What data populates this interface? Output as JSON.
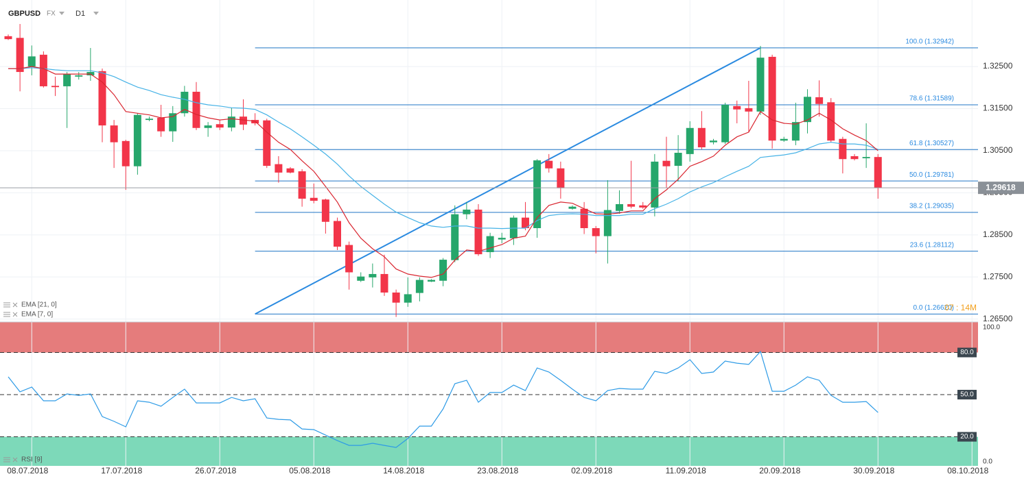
{
  "header": {
    "symbol": "GBPUSD",
    "market": "FX",
    "timeframe": "D1",
    "timer": "07 : 14M"
  },
  "chart_data": [
    {
      "type": "candlestick",
      "up_color": "#26a66b",
      "down_color": "#f23549",
      "open": [
        1.3322,
        1.3318,
        1.325,
        1.3278,
        1.3204,
        1.3203,
        1.3226,
        1.3229,
        1.3239,
        1.311,
        1.3073,
        1.3013,
        1.3123,
        1.3128,
        1.3096,
        1.3139,
        1.319,
        1.3104,
        1.3113,
        1.3105,
        1.3131,
        1.3123,
        1.3122,
        1.3018,
        1.3008,
        1.3001,
        1.2938,
        1.2934,
        1.2883,
        1.2826,
        1.2741,
        1.2749,
        1.2757,
        1.2713,
        1.2689,
        1.2712,
        1.2739,
        1.2741,
        1.279,
        1.2899,
        1.291,
        1.2809,
        1.2839,
        1.2842,
        1.2891,
        1.2866,
        1.3026,
        1.3008,
        1.2912,
        1.2912,
        1.2866,
        1.2847,
        1.2907,
        1.2923,
        1.292,
        1.2915,
        1.3026,
        1.3014,
        1.3042,
        1.3104,
        1.307,
        1.307,
        1.3156,
        1.3151,
        1.3143,
        1.3273,
        1.3074,
        1.3074,
        1.3118,
        1.3177,
        1.3165,
        1.3078,
        1.3037,
        1.3032,
        1.3035
      ],
      "high": [
        1.3326,
        1.3351,
        1.33,
        1.3286,
        1.3226,
        1.3237,
        1.3237,
        1.3294,
        1.3245,
        1.3123,
        1.3076,
        1.3139,
        1.3131,
        1.3159,
        1.3156,
        1.3204,
        1.3213,
        1.3118,
        1.3123,
        1.3152,
        1.3172,
        1.3139,
        1.3126,
        1.3037,
        1.3011,
        1.3006,
        1.2972,
        1.2936,
        1.2891,
        1.2834,
        1.2761,
        1.2782,
        1.2803,
        1.272,
        1.2749,
        1.2749,
        1.2745,
        1.2795,
        1.292,
        1.2928,
        1.2923,
        1.2855,
        1.2855,
        1.2896,
        1.2928,
        1.303,
        1.3042,
        1.3024,
        1.292,
        1.2928,
        1.2871,
        1.298,
        1.2956,
        1.3026,
        1.2928,
        1.3042,
        1.3083,
        1.3087,
        1.312,
        1.3144,
        1.3078,
        1.3164,
        1.3169,
        1.3216,
        1.3299,
        1.3278,
        1.3083,
        1.3164,
        1.3196,
        1.3217,
        1.3175,
        1.3083,
        1.3042,
        1.3115,
        1.3042
      ],
      "low": [
        1.3313,
        1.3191,
        1.3229,
        1.32,
        1.318,
        1.3104,
        1.3219,
        1.3216,
        1.307,
        1.3009,
        1.2957,
        1.2993,
        1.312,
        1.3083,
        1.3071,
        1.3131,
        1.3099,
        1.3083,
        1.3099,
        1.3096,
        1.3099,
        1.311,
        1.3009,
        1.2974,
        1.2996,
        1.2917,
        1.2925,
        1.2853,
        1.2814,
        1.272,
        1.2738,
        1.2725,
        1.2705,
        1.2655,
        1.2679,
        1.2692,
        1.2738,
        1.2728,
        1.2785,
        1.2887,
        1.28,
        1.2795,
        1.283,
        1.2826,
        1.2861,
        1.2843,
        1.2998,
        1.2936,
        1.291,
        1.2852,
        1.2806,
        1.2782,
        1.29,
        1.2913,
        1.2912,
        1.2894,
        1.2961,
        1.2977,
        1.3024,
        1.3053,
        1.3065,
        1.3066,
        1.3115,
        1.3094,
        1.3135,
        1.3055,
        1.3071,
        1.3063,
        1.3091,
        1.3131,
        1.307,
        1.2996,
        1.3027,
        1.3009,
        1.2936
      ],
      "close": [
        1.3315,
        1.3237,
        1.3274,
        1.3203,
        1.3201,
        1.3232,
        1.3229,
        1.3237,
        1.311,
        1.307,
        1.3013,
        1.3135,
        1.3126,
        1.3096,
        1.3139,
        1.319,
        1.3104,
        1.311,
        1.3105,
        1.3131,
        1.3112,
        1.3115,
        1.3014,
        1.2998,
        1.2998,
        1.2936,
        1.2931,
        1.2881,
        1.2822,
        1.2761,
        1.2751,
        1.2757,
        1.2713,
        1.2689,
        1.2709,
        1.2743,
        1.2743,
        1.2791,
        1.2899,
        1.291,
        1.2804,
        1.2847,
        1.2843,
        1.2891,
        1.2866,
        1.3027,
        1.3008,
        1.2961,
        1.2917,
        1.2866,
        1.2847,
        1.2909,
        1.2923,
        1.2917,
        1.2915,
        1.3024,
        1.3013,
        1.3045,
        1.3104,
        1.3058,
        1.3074,
        1.3159,
        1.3148,
        1.3143,
        1.3271,
        1.3074,
        1.3078,
        1.3118,
        1.3178,
        1.3161,
        1.3074,
        1.303,
        1.303,
        1.3035,
        1.2962
      ],
      "series": [
        {
          "name": "EMA [21, 0]",
          "color": "#45b2e6",
          "values": [
            1.3245,
            1.3245,
            1.3247,
            1.3245,
            1.3242,
            1.324,
            1.324,
            1.324,
            1.3235,
            1.3226,
            1.3213,
            1.3201,
            1.3193,
            1.3183,
            1.3177,
            1.3172,
            1.3164,
            1.3159,
            1.3156,
            1.3152,
            1.3151,
            1.3148,
            1.3135,
            1.3118,
            1.3102,
            1.3083,
            1.3063,
            1.3042,
            1.3018,
            1.299,
            1.2965,
            1.2944,
            1.2923,
            1.2904,
            1.2891,
            1.2879,
            1.2871,
            1.2868,
            1.2871,
            1.2871,
            1.2866,
            1.2866,
            1.2865,
            1.2866,
            1.2866,
            1.2884,
            1.2896,
            1.2899,
            1.29,
            1.2899,
            1.2896,
            1.2896,
            1.2896,
            1.2899,
            1.2899,
            1.2912,
            1.2923,
            1.2936,
            1.2952,
            1.2964,
            1.2974,
            1.2988,
            1.3001,
            1.3013,
            1.3034,
            1.3037,
            1.304,
            1.3045,
            1.3055,
            1.3066,
            1.307,
            1.3066,
            1.3066,
            1.3063,
            1.3053
          ]
        },
        {
          "name": "EMA [7, 0]",
          "color": "#d9252f",
          "values": [
            1.3245,
            1.3245,
            1.325,
            1.3245,
            1.3232,
            1.3232,
            1.3232,
            1.3232,
            1.3213,
            1.3183,
            1.3143,
            1.3139,
            1.3135,
            1.3128,
            1.3131,
            1.3148,
            1.3136,
            1.3128,
            1.3123,
            1.3126,
            1.3123,
            1.312,
            1.3094,
            1.307,
            1.3053,
            1.3026,
            1.3001,
            1.2965,
            1.2928,
            1.2879,
            1.2842,
            1.2817,
            1.2798,
            1.2769,
            1.2757,
            1.2752,
            1.2749,
            1.2757,
            1.279,
            1.2814,
            1.2811,
            1.2819,
            1.2827,
            1.2842,
            1.2847,
            1.2891,
            1.292,
            1.2928,
            1.2925,
            1.2912,
            1.29,
            1.2899,
            1.2902,
            1.2907,
            1.2907,
            1.2936,
            1.2957,
            1.2982,
            1.3013,
            1.3024,
            1.3037,
            1.3063,
            1.3083,
            1.3094,
            1.3143,
            1.3123,
            1.3115,
            1.3113,
            1.3123,
            1.3139,
            1.3123,
            1.3102,
            1.3087,
            1.3074,
            1.305
          ]
        }
      ],
      "fibonacci": [
        {
          "label": "100.0 (1.32942)",
          "value": 1.32942
        },
        {
          "label": "78.6 (1.31589)",
          "value": 1.31589
        },
        {
          "label": "61.8 (1.30527)",
          "value": 1.30527
        },
        {
          "label": "50.0 (1.29781)",
          "value": 1.29781
        },
        {
          "label": "38.2 (1.29035)",
          "value": 1.29035
        },
        {
          "label": "23.6 (1.28112)",
          "value": 1.28112
        },
        {
          "label": "0.0 (1.26620)",
          "value": 1.2662
        }
      ],
      "fib_color": "#1f74c4",
      "last_price": 1.29618,
      "ylim": [
        1.2643,
        1.3408
      ],
      "yticks": [
        {
          "value": 1.325,
          "label": "1.32500"
        },
        {
          "value": 1.315,
          "label": "1.31500"
        },
        {
          "value": 1.305,
          "label": "1.30500"
        },
        {
          "value": 1.295,
          "label": "1.29500"
        },
        {
          "value": 1.285,
          "label": "1.28500"
        },
        {
          "value": 1.275,
          "label": "1.27500"
        },
        {
          "value": 1.265,
          "label": "1.26500"
        }
      ],
      "x_labels": [
        "08.07.2018",
        "17.07.2018",
        "26.07.2018",
        "05.08.2018",
        "14.08.2018",
        "23.08.2018",
        "02.09.2018",
        "11.09.2018",
        "20.09.2018",
        "30.09.2018",
        "08.10.2018"
      ],
      "grid": true
    },
    {
      "type": "line",
      "series": [
        {
          "name": "RSI [9]",
          "color": "#2e9be6",
          "values": [
            62.7,
            52.0,
            55.4,
            45.6,
            45.6,
            50.5,
            49.5,
            50.5,
            34.4,
            31.0,
            27.1,
            45.6,
            44.6,
            41.7,
            48.0,
            53.9,
            44.1,
            44.1,
            44.1,
            48.0,
            45.6,
            47.1,
            33.4,
            32.4,
            32.0,
            25.6,
            25.1,
            21.2,
            17.3,
            13.9,
            13.9,
            15.4,
            13.9,
            12.4,
            18.8,
            27.6,
            27.6,
            39.8,
            57.8,
            60.2,
            44.6,
            51.5,
            51.5,
            56.8,
            52.9,
            69.0,
            66.1,
            60.2,
            53.9,
            48.0,
            45.6,
            52.9,
            54.4,
            53.9,
            53.9,
            66.6,
            65.1,
            69.0,
            74.9,
            65.1,
            66.1,
            73.9,
            72.4,
            71.5,
            80.7,
            52.4,
            52.4,
            56.8,
            62.7,
            60.2,
            49.5,
            44.6,
            44.6,
            45.1,
            37.3
          ]
        }
      ],
      "ylim": [
        -0.7,
        101.7
      ],
      "yticks": [
        {
          "value": 100,
          "label": "100.0"
        },
        {
          "value": 80,
          "label": "80.0",
          "level": true
        },
        {
          "value": 50,
          "label": "50.0",
          "level": true
        },
        {
          "value": 20,
          "label": "20.0",
          "level": true
        },
        {
          "value": 0,
          "label": "0.0"
        }
      ],
      "upper_zone_color": "#e57c7c",
      "lower_zone_color": "#7dd9b9"
    }
  ]
}
